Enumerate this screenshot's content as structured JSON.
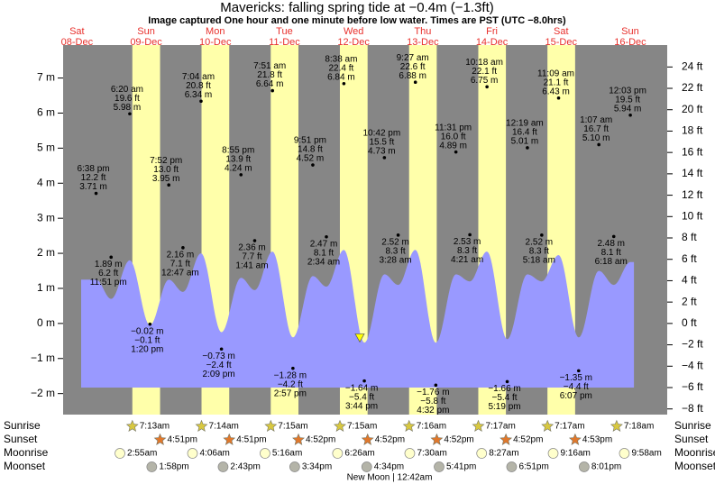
{
  "chart_data": {
    "type": "area",
    "title": "Mavericks: falling  spring tide at −0.4m (−1.3ft)",
    "subtitle": "Image captured One hour and one minute before low water. Times are PST (UTC −8.0hrs)",
    "current_level": -0.4,
    "colors": {
      "curve": "#9999ff",
      "daylight": "#ffffaa",
      "night": "#868686",
      "sunrise": "#d8c840",
      "sunset": "#e0782c",
      "moonrise": "#ffffcc",
      "moonset": "#b4b4a8"
    },
    "ylim": [
      -2.6,
      7.94
    ],
    "yticks": [
      {
        "value": 7,
        "label": "7 m"
      },
      {
        "value": 6,
        "label": "6 m"
      },
      {
        "value": 5,
        "label": "5 m"
      },
      {
        "value": 4,
        "label": "4 m"
      },
      {
        "value": 3,
        "label": "3 m"
      },
      {
        "value": 2,
        "label": "2 m"
      },
      {
        "value": 1,
        "label": "1 m"
      },
      {
        "value": 0,
        "label": "0 m"
      },
      {
        "value": -1,
        "label": "−1 m"
      },
      {
        "value": -2,
        "label": "−2 m"
      }
    ],
    "y2lim": [
      -8.53,
      26.05
    ],
    "y2ticks": [
      {
        "value": 24,
        "label": "24 ft"
      },
      {
        "value": 22,
        "label": "22 ft"
      },
      {
        "value": 20,
        "label": "20 ft"
      },
      {
        "value": 18,
        "label": "18 ft"
      },
      {
        "value": 16,
        "label": "16 ft"
      },
      {
        "value": 14,
        "label": "14 ft"
      },
      {
        "value": 12,
        "label": "12 ft"
      },
      {
        "value": 10,
        "label": "10 ft"
      },
      {
        "value": 8,
        "label": "8 ft"
      },
      {
        "value": 6,
        "label": "6 ft"
      },
      {
        "value": 4,
        "label": "4 ft"
      },
      {
        "value": 2,
        "label": "2 ft"
      },
      {
        "value": 0,
        "label": "0 ft"
      },
      {
        "value": -2,
        "label": "−2 ft"
      },
      {
        "value": -4,
        "label": "−4 ft"
      },
      {
        "value": -6,
        "label": "−6 ft"
      },
      {
        "value": -8,
        "label": "−8 ft"
      }
    ],
    "row_labels": {
      "sunrise": "Sunrise",
      "sunset": "Sunset",
      "moonrise": "Moonrise",
      "moonset": "Moonset"
    },
    "moon_phase": "New Moon | 12:42am",
    "days": [
      {
        "name": "Sat",
        "date": "08-Dec",
        "tides": [
          {
            "time": "6:38 pm",
            "m": 3.71,
            "m_label": "3.71 m",
            "ft_label": "12.2 ft",
            "curve": 1.25
          },
          {
            "time": "11:51 pm",
            "m": 1.89,
            "m_label": "1.89 m",
            "ft_label": "6.2 ft",
            "curve": 0.7
          }
        ]
      },
      {
        "name": "Sun",
        "date": "09-Dec",
        "sunrise": "7:13am",
        "sunset": "4:51pm",
        "moonrise": "2:55am",
        "moonset": "1:58pm",
        "tides": [
          {
            "time": "6:20 am",
            "m": 5.98,
            "m_label": "5.98 m",
            "ft_label": "19.6 ft",
            "curve": 1.8
          },
          {
            "time": "1:20 pm",
            "m": -0.02,
            "m_label": "−0.02 m",
            "ft_label": "−0.1 ft",
            "curve": -0.05
          },
          {
            "time": "7:52 pm",
            "m": 3.95,
            "m_label": "3.95 m",
            "ft_label": "13.0 ft",
            "curve": 1.25
          }
        ]
      },
      {
        "name": "Mon",
        "date": "10-Dec",
        "sunrise": "7:14am",
        "sunset": "4:51pm",
        "moonrise": "4:06am",
        "moonset": "2:43pm",
        "tides": [
          {
            "time": "12:47 am",
            "m": 2.16,
            "m_label": "2.16 m",
            "ft_label": "7.1 ft",
            "curve": 0.9
          },
          {
            "time": "7:04 am",
            "m": 6.34,
            "m_label": "6.34 m",
            "ft_label": "20.8 ft",
            "curve": 2.0
          },
          {
            "time": "2:09 pm",
            "m": -0.73,
            "m_label": "−0.73 m",
            "ft_label": "−2.4 ft",
            "curve": -0.25
          },
          {
            "time": "8:55 pm",
            "m": 4.24,
            "m_label": "4.24 m",
            "ft_label": "13.9 ft",
            "curve": 1.3
          }
        ]
      },
      {
        "name": "Tue",
        "date": "11-Dec",
        "sunrise": "7:15am",
        "sunset": "4:52pm",
        "moonrise": "5:16am",
        "moonset": "3:34pm",
        "tides": [
          {
            "time": "1:41 am",
            "m": 2.36,
            "m_label": "2.36 m",
            "ft_label": "7.7 ft",
            "curve": 0.95
          },
          {
            "time": "7:51 am",
            "m": 6.64,
            "m_label": "6.64 m",
            "ft_label": "21.8 ft",
            "curve": 2.05
          },
          {
            "time": "2:57 pm",
            "m": -1.28,
            "m_label": "−1.28 m",
            "ft_label": "−4.2 ft",
            "curve": -0.4
          },
          {
            "time": "9:51 pm",
            "m": 4.52,
            "m_label": "4.52 m",
            "ft_label": "14.8 ft",
            "curve": 1.35
          }
        ]
      },
      {
        "name": "Wed",
        "date": "12-Dec",
        "sunrise": "7:15am",
        "sunset": "4:52pm",
        "moonrise": "6:26am",
        "moonset": "4:34pm",
        "tides": [
          {
            "time": "2:34 am",
            "m": 2.47,
            "m_label": "2.47 m",
            "ft_label": "8.1 ft",
            "curve": 1.05
          },
          {
            "time": "8:38 am",
            "m": 6.84,
            "m_label": "6.84 m",
            "ft_label": "22.4 ft",
            "curve": 2.1
          },
          {
            "time": "3:44 pm",
            "m": -1.64,
            "m_label": "−1.64 m",
            "ft_label": "−5.4 ft",
            "curve": -0.55
          },
          {
            "time": "10:42 pm",
            "m": 4.73,
            "m_label": "4.73 m",
            "ft_label": "15.5 ft",
            "curve": 1.4
          }
        ]
      },
      {
        "name": "Thu",
        "date": "13-Dec",
        "sunrise": "7:16am",
        "sunset": "4:52pm",
        "moonrise": "7:30am",
        "moonset": "5:41pm",
        "tides": [
          {
            "time": "3:28 am",
            "m": 2.52,
            "m_label": "2.52 m",
            "ft_label": "8.3 ft",
            "curve": 1.1
          },
          {
            "time": "9:27 am",
            "m": 6.88,
            "m_label": "6.88 m",
            "ft_label": "22.6 ft",
            "curve": 2.1
          },
          {
            "time": "4:32 pm",
            "m": -1.76,
            "m_label": "−1.76 m",
            "ft_label": "−5.8 ft",
            "curve": -0.55
          },
          {
            "time": "11:31 pm",
            "m": 4.89,
            "m_label": "4.89 m",
            "ft_label": "16.0 ft",
            "curve": 1.4
          }
        ]
      },
      {
        "name": "Fri",
        "date": "14-Dec",
        "sunrise": "7:17am",
        "sunset": "4:52pm",
        "moonrise": "8:27am",
        "moonset": "6:51pm",
        "tides": [
          {
            "time": "4:21 am",
            "m": 2.53,
            "m_label": "2.53 m",
            "ft_label": "8.3 ft",
            "curve": 1.2
          },
          {
            "time": "10:18 am",
            "m": 6.75,
            "m_label": "6.75 m",
            "ft_label": "22.1 ft",
            "curve": 2.05
          },
          {
            "time": "5:19 pm",
            "m": -1.66,
            "m_label": "−1.66 m",
            "ft_label": "−5.4 ft",
            "curve": -0.45
          }
        ]
      },
      {
        "name": "Sat",
        "date": "15-Dec",
        "sunrise": "7:17am",
        "sunset": "4:53pm",
        "moonrise": "9:16am",
        "moonset": "8:01pm",
        "tides": [
          {
            "time": "12:19 am",
            "m": 5.01,
            "m_label": "5.01 m",
            "ft_label": "16.4 ft",
            "curve": 1.4
          },
          {
            "time": "5:18 am",
            "m": 2.52,
            "m_label": "2.52 m",
            "ft_label": "8.3 ft",
            "curve": 1.2
          },
          {
            "time": "11:09 am",
            "m": 6.43,
            "m_label": "6.43 m",
            "ft_label": "21.1 ft",
            "curve": 1.95
          },
          {
            "time": "6:07 pm",
            "m": -1.35,
            "m_label": "−1.35 m",
            "ft_label": "−4.4 ft",
            "curve": -0.4
          }
        ]
      },
      {
        "name": "Sun",
        "date": "16-Dec",
        "sunrise": "7:18am",
        "moonrise": "9:58am",
        "tides": [
          {
            "time": "1:07 am",
            "m": 5.1,
            "m_label": "5.10 m",
            "ft_label": "16.7 ft",
            "curve": 1.5
          },
          {
            "time": "6:18 am",
            "m": 2.48,
            "m_label": "2.48 m",
            "ft_label": "8.1 ft",
            "curve": 1.1
          },
          {
            "time": "12:03 pm",
            "m": 5.94,
            "m_label": "5.94 m",
            "ft_label": "19.5 ft",
            "curve": 1.75
          }
        ]
      }
    ]
  }
}
